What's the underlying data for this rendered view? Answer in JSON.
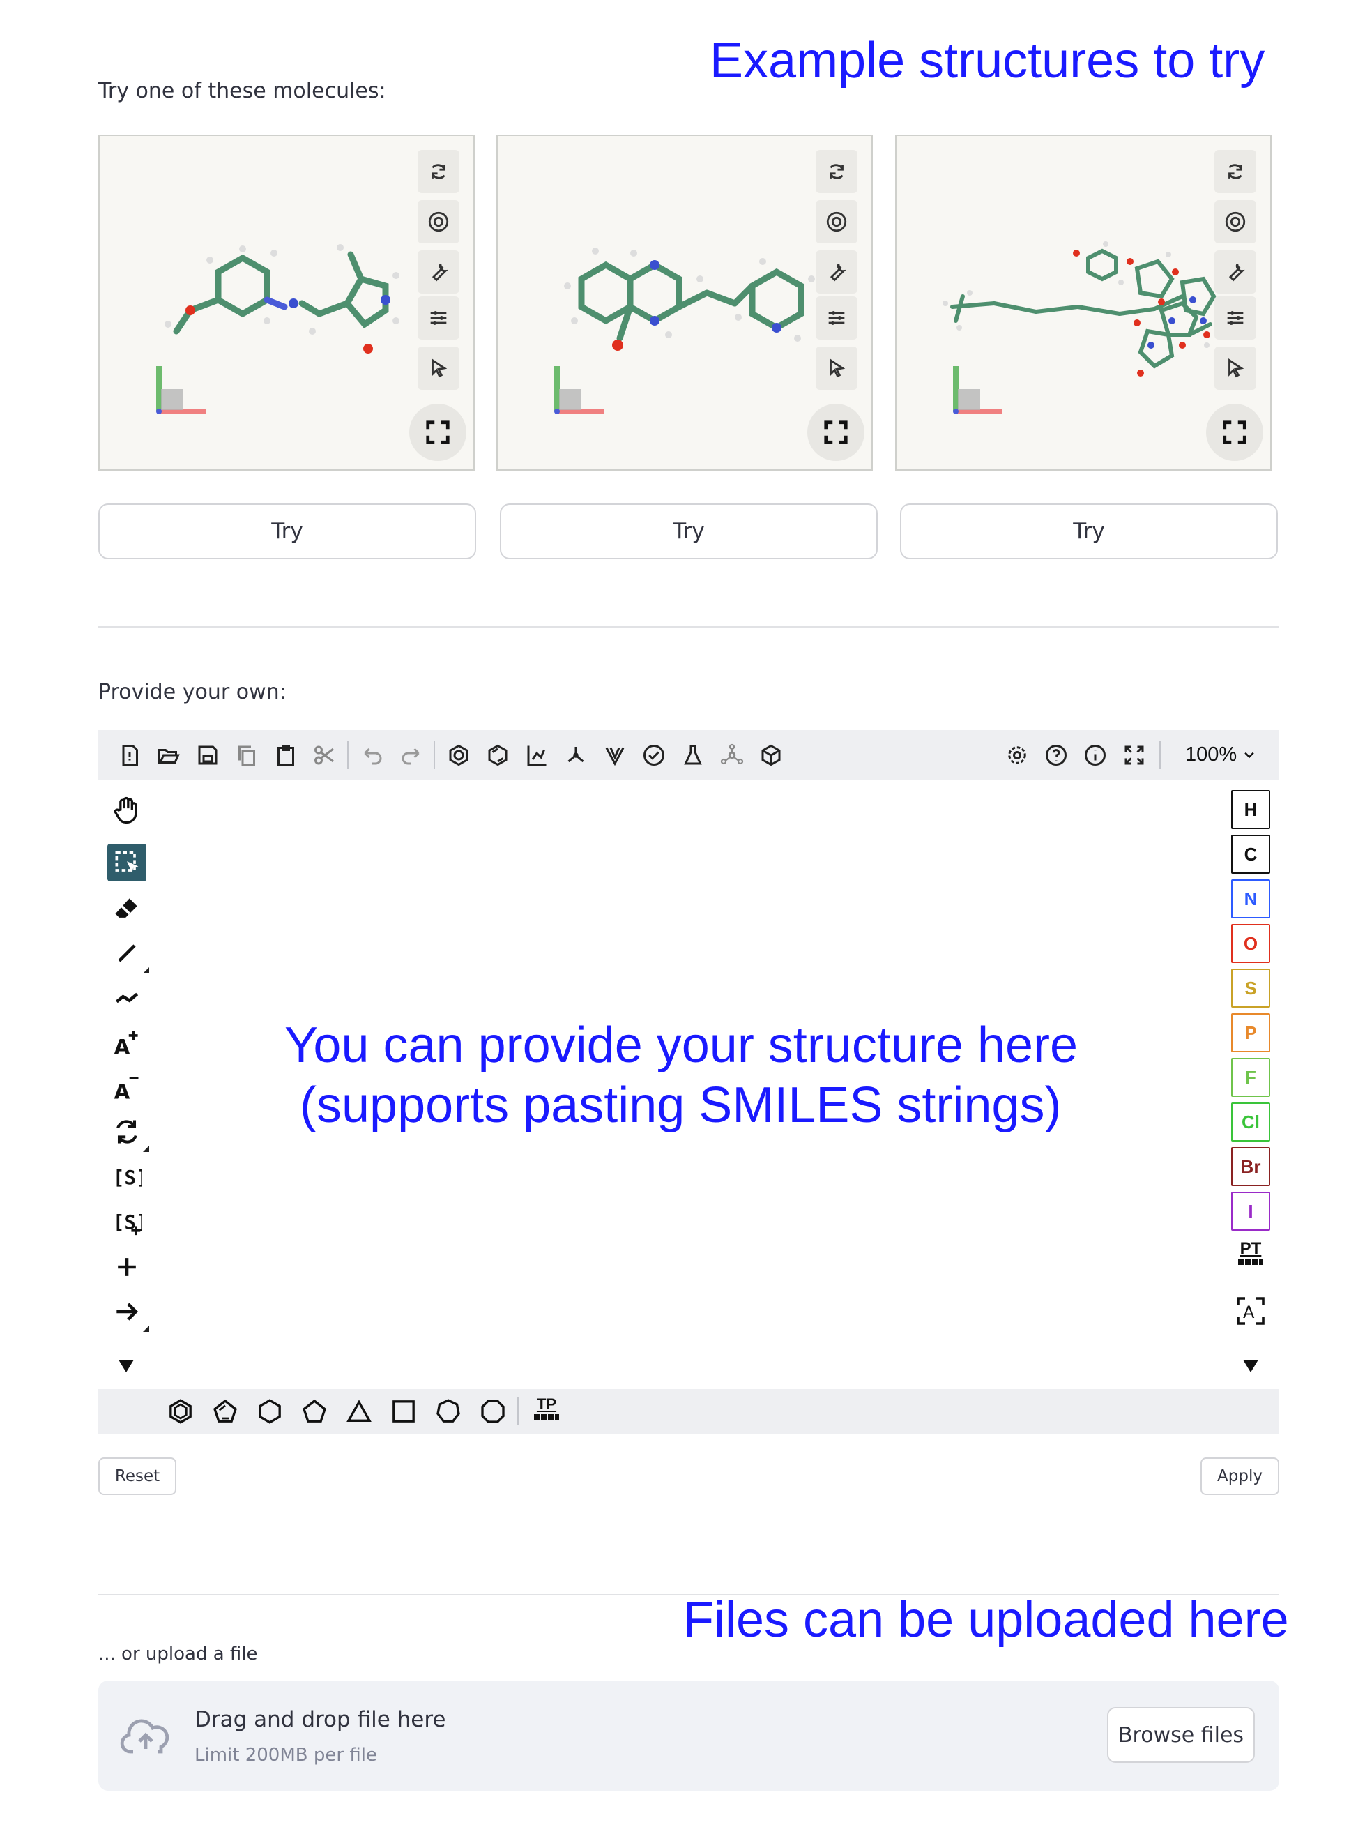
{
  "annotations": {
    "examples": "Example structures to try",
    "editor_line1": "You can provide your structure here",
    "editor_line2": "(supports pasting SMILES strings)",
    "upload": "Files can be uploaded here"
  },
  "examples_section": {
    "heading": "Try one of these molecules:",
    "try_label": "Try"
  },
  "editor_section": {
    "heading": "Provide your own:",
    "zoom": "100%",
    "atoms": [
      {
        "symbol": "H",
        "color": "#111111"
      },
      {
        "symbol": "C",
        "color": "#111111"
      },
      {
        "symbol": "N",
        "color": "#2d5bff"
      },
      {
        "symbol": "O",
        "color": "#e0301e"
      },
      {
        "symbol": "S",
        "color": "#c9a227"
      },
      {
        "symbol": "P",
        "color": "#e8892b"
      },
      {
        "symbol": "F",
        "color": "#6fc44b"
      },
      {
        "symbol": "Cl",
        "color": "#3ac43a"
      },
      {
        "symbol": "Br",
        "color": "#8a2222"
      },
      {
        "symbol": "I",
        "color": "#9a2bc8"
      }
    ],
    "periodic_table_label": "PT",
    "template_label": "TP",
    "reset_label": "Reset",
    "apply_label": "Apply"
  },
  "upload_section": {
    "heading": "... or upload a file",
    "drop_text": "Drag and drop file here",
    "limit_text": "Limit 200MB per file",
    "browse_label": "Browse files"
  },
  "colors": {
    "annotation_blue": "#1a1aff",
    "molecule_carbon": "#4e8f6e",
    "active_tool": "#2f5d6b"
  }
}
